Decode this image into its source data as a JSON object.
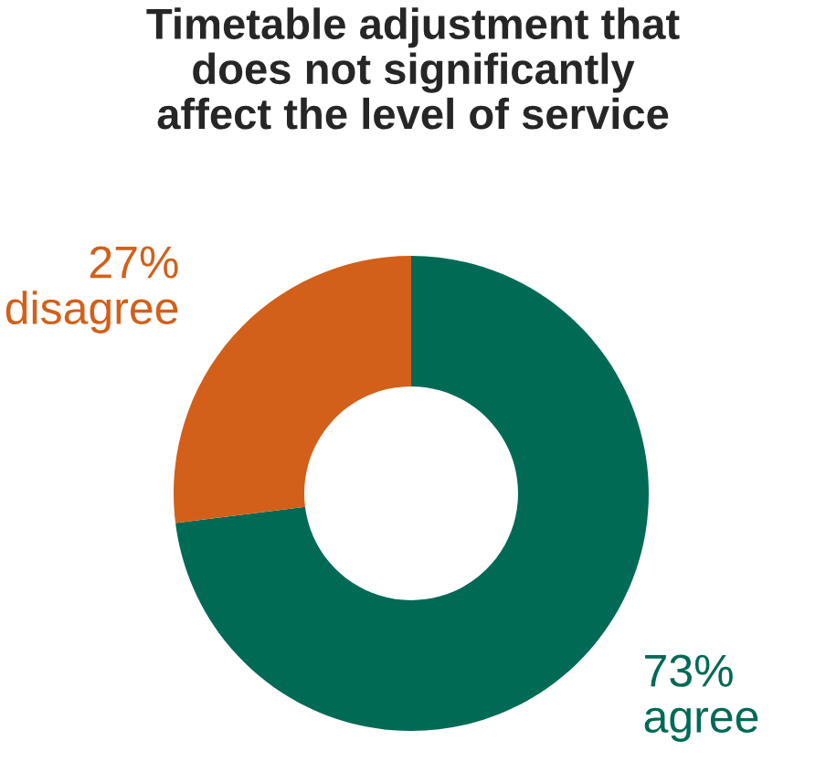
{
  "chart_data": {
    "type": "donut",
    "title": "Timetable adjustment that\ndoes not significantly\naffect the level of service",
    "categories": [
      "agree",
      "disagree"
    ],
    "values": [
      73,
      27
    ],
    "value_labels": [
      "73%",
      "27%"
    ],
    "colors": [
      "#006a55",
      "#d2601a"
    ],
    "legend": false
  }
}
